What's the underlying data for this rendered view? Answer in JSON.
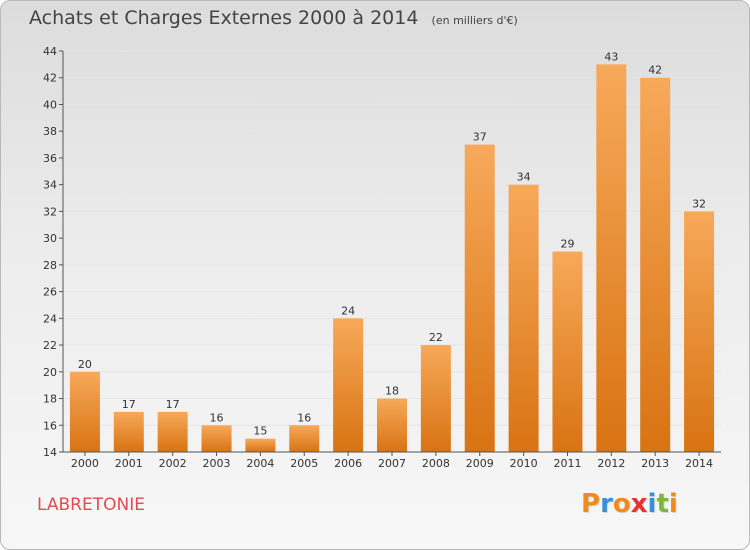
{
  "title": "Achats et Charges Externes 2000 à 2014",
  "unit_note": "(en milliers d'€)",
  "commune": "LABRETONIE",
  "logo": {
    "text": "Proxiti",
    "letter_colors": [
      "#f08a1c",
      "#3c8fd6",
      "#f08a1c",
      "#e9322e",
      "#3c8fd6",
      "#7db83a",
      "#f08a1c"
    ]
  },
  "colors": {
    "bar_top": "#f7a95a",
    "bar_bottom": "#d87312",
    "grid": "#e6e6e6",
    "axis": "#555555",
    "commune": "#e04b4f"
  },
  "chart_data": {
    "type": "bar",
    "title": "Achats et Charges Externes 2000 à 2014",
    "subtitle": "(en milliers d'€)",
    "categories": [
      "2000",
      "2001",
      "2002",
      "2003",
      "2004",
      "2005",
      "2006",
      "2007",
      "2008",
      "2009",
      "2010",
      "2011",
      "2012",
      "2013",
      "2014"
    ],
    "values": [
      20,
      17,
      17,
      16,
      15,
      16,
      24,
      18,
      22,
      37,
      34,
      29,
      43,
      42,
      32
    ],
    "ylim": [
      14,
      44
    ],
    "yticks": [
      14,
      16,
      18,
      20,
      22,
      24,
      26,
      28,
      30,
      32,
      34,
      36,
      38,
      40,
      42,
      44
    ],
    "grid": true,
    "data_labels": true
  }
}
